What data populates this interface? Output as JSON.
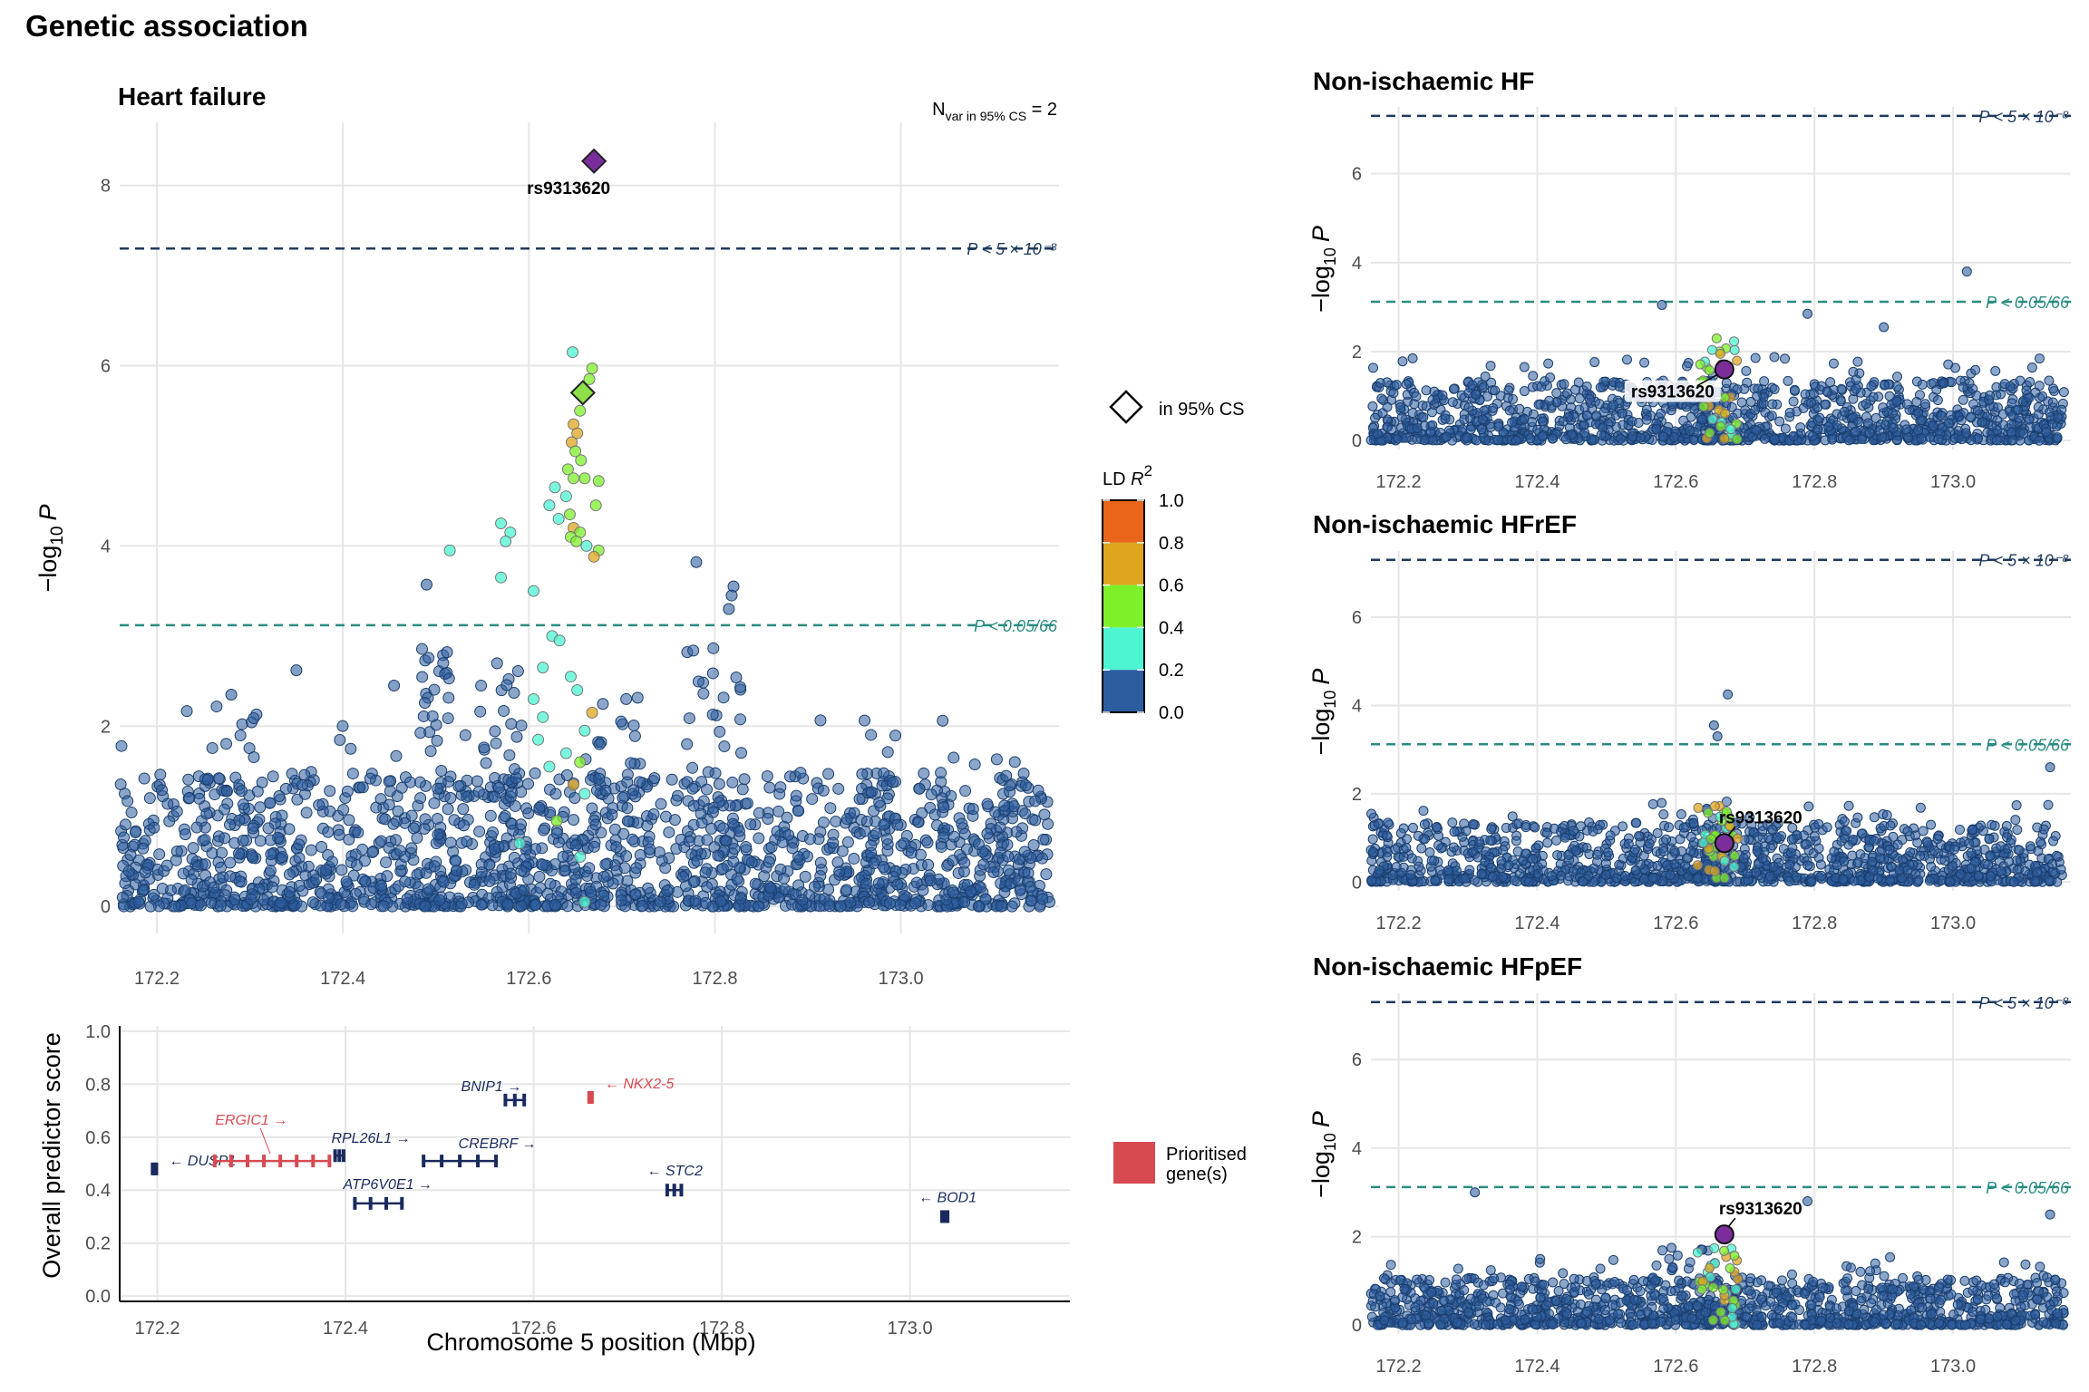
{
  "figure_title": "Genetic association",
  "colors": {
    "snp_base": "#2d5d9f",
    "snp_stroke": "#1b3f6e",
    "grid": "#e6e6e6",
    "gws_line": "#1f3a5f",
    "bonf_line": "#2a8c80",
    "lead": "#7b2e9b",
    "prioritised": "#d84a52",
    "gene": "#1a2a5e"
  },
  "chart_data": [
    {
      "type": "scatter",
      "panel": "main",
      "title": "Heart failure",
      "nvar_label": {
        "prefix": "N",
        "sub": "var in 95% CS",
        "suffix": " = 2"
      },
      "xlabel": "",
      "ylabel_parts": {
        "pre": "−log",
        "sub": "10",
        "post": "P"
      },
      "xlim": [
        172.16,
        173.17
      ],
      "ylim": [
        -0.3,
        8.7
      ],
      "x_ticks": [
        "172.2",
        "172.4",
        "172.6",
        "172.8",
        "173.0"
      ],
      "x_tick_values": [
        172.2,
        172.4,
        172.6,
        172.8,
        173.0
      ],
      "y_ticks": [
        "0",
        "2",
        "4",
        "6",
        "8"
      ],
      "y_tick_values": [
        0,
        2,
        4,
        6,
        8
      ],
      "thresholds": [
        {
          "y": 7.3,
          "label": "P < 5 × 10⁻⁸",
          "kind": "gws"
        },
        {
          "y": 3.12,
          "label": "P < 0.05/66",
          "kind": "bonf"
        }
      ],
      "lead_snp": {
        "name": "rs9313620",
        "x": 172.67,
        "y": 8.27,
        "shape": "diamond"
      },
      "credible_set": [
        {
          "x": 172.67,
          "y": 8.27,
          "color": "#7b2e9b"
        },
        {
          "x": 172.658,
          "y": 5.7,
          "color": "#8ee04a"
        }
      ],
      "highlight_points": [
        {
          "x": 172.647,
          "y": 6.15,
          "r2": 0.25
        },
        {
          "x": 172.668,
          "y": 5.97,
          "r2": 0.45
        },
        {
          "x": 172.665,
          "y": 5.85,
          "r2": 0.45
        },
        {
          "x": 172.655,
          "y": 5.5,
          "r2": 0.45
        },
        {
          "x": 172.648,
          "y": 5.35,
          "r2": 0.7
        },
        {
          "x": 172.652,
          "y": 5.25,
          "r2": 0.7
        },
        {
          "x": 172.646,
          "y": 5.15,
          "r2": 0.7
        },
        {
          "x": 172.65,
          "y": 5.05,
          "r2": 0.45
        },
        {
          "x": 172.656,
          "y": 4.95,
          "r2": 0.45
        },
        {
          "x": 172.642,
          "y": 4.85,
          "r2": 0.45
        },
        {
          "x": 172.66,
          "y": 4.75,
          "r2": 0.45
        },
        {
          "x": 172.648,
          "y": 4.75,
          "r2": 0.45
        },
        {
          "x": 172.675,
          "y": 4.72,
          "r2": 0.45
        },
        {
          "x": 172.628,
          "y": 4.65,
          "r2": 0.25
        },
        {
          "x": 172.64,
          "y": 4.55,
          "r2": 0.25
        },
        {
          "x": 172.672,
          "y": 4.45,
          "r2": 0.45
        },
        {
          "x": 172.622,
          "y": 4.45,
          "r2": 0.25
        },
        {
          "x": 172.644,
          "y": 4.35,
          "r2": 0.45
        },
        {
          "x": 172.632,
          "y": 4.3,
          "r2": 0.25
        },
        {
          "x": 172.648,
          "y": 4.2,
          "r2": 0.7
        },
        {
          "x": 172.655,
          "y": 4.15,
          "r2": 0.45
        },
        {
          "x": 172.645,
          "y": 4.1,
          "r2": 0.45
        },
        {
          "x": 172.651,
          "y": 4.05,
          "r2": 0.45
        },
        {
          "x": 172.662,
          "y": 4.0,
          "r2": 0.25
        },
        {
          "x": 172.675,
          "y": 3.95,
          "r2": 0.45
        },
        {
          "x": 172.67,
          "y": 3.88,
          "r2": 0.7
        },
        {
          "x": 172.57,
          "y": 4.25,
          "r2": 0.25
        },
        {
          "x": 172.58,
          "y": 4.15,
          "r2": 0.25
        },
        {
          "x": 172.575,
          "y": 4.05,
          "r2": 0.25
        },
        {
          "x": 172.515,
          "y": 3.95,
          "r2": 0.25
        },
        {
          "x": 172.57,
          "y": 3.65,
          "r2": 0.25
        },
        {
          "x": 172.605,
          "y": 3.5,
          "r2": 0.25
        },
        {
          "x": 172.625,
          "y": 3.0,
          "r2": 0.25
        },
        {
          "x": 172.633,
          "y": 2.95,
          "r2": 0.25
        },
        {
          "x": 172.615,
          "y": 2.65,
          "r2": 0.25
        },
        {
          "x": 172.645,
          "y": 2.55,
          "r2": 0.25
        },
        {
          "x": 172.652,
          "y": 2.4,
          "r2": 0.25
        },
        {
          "x": 172.605,
          "y": 2.3,
          "r2": 0.25
        },
        {
          "x": 172.615,
          "y": 2.1,
          "r2": 0.25
        },
        {
          "x": 172.668,
          "y": 2.15,
          "r2": 0.7
        },
        {
          "x": 172.66,
          "y": 1.95,
          "r2": 0.25
        },
        {
          "x": 172.61,
          "y": 1.85,
          "r2": 0.25
        },
        {
          "x": 172.64,
          "y": 1.7,
          "r2": 0.25
        },
        {
          "x": 172.655,
          "y": 1.6,
          "r2": 0.45
        },
        {
          "x": 172.622,
          "y": 1.55,
          "r2": 0.25
        },
        {
          "x": 172.648,
          "y": 1.35,
          "r2": 0.7
        },
        {
          "x": 172.66,
          "y": 1.25,
          "r2": 0.25
        },
        {
          "x": 172.63,
          "y": 0.95,
          "r2": 0.45
        },
        {
          "x": 172.59,
          "y": 0.7,
          "r2": 0.25
        },
        {
          "x": 172.655,
          "y": 0.55,
          "r2": 0.25
        },
        {
          "x": 172.66,
          "y": 0.05,
          "r2": 0.25
        }
      ],
      "background_points_note": "Several thousand background SNPs with LD R² < 0.2 form a dense band from −log10 P 0 to ~1.7 across the region; extra peaks near 172.50–172.52 (up to ~3.6), 172.78–172.83 (up to ~3.8)."
    },
    {
      "type": "scatter",
      "panel": "gene",
      "title": "",
      "xlabel": "Chromosome 5 position (Mbp)",
      "ylabel": "Overall predictor score",
      "xlim": [
        172.16,
        173.17
      ],
      "ylim": [
        -0.02,
        1.02
      ],
      "x_ticks": [
        "172.2",
        "172.4",
        "172.6",
        "172.8",
        "173.0"
      ],
      "x_tick_values": [
        172.2,
        172.4,
        172.6,
        172.8,
        173.0
      ],
      "y_ticks": [
        "0.0",
        "0.2",
        "0.4",
        "0.6",
        "0.8",
        "1.0"
      ],
      "y_tick_values": [
        0.0,
        0.2,
        0.4,
        0.6,
        0.8,
        1.0
      ],
      "genes": [
        {
          "name": "DUSP1",
          "label": "← DUSP1",
          "start": 172.195,
          "end": 172.199,
          "score": 0.48,
          "prioritised": false,
          "label_side": "right"
        },
        {
          "name": "ERGIC1",
          "label": "ERGIC1 →",
          "start": 172.261,
          "end": 172.383,
          "score": 0.51,
          "prioritised": true,
          "label_side": "above"
        },
        {
          "name": "RPL26L1",
          "label": "RPL26L1 →",
          "start": 172.389,
          "end": 172.398,
          "score": 0.53,
          "prioritised": false,
          "label_side": "right-above"
        },
        {
          "name": "ATP6V0E1",
          "label": "ATP6V0E1 →",
          "start": 172.41,
          "end": 172.46,
          "score": 0.35,
          "prioritised": false,
          "label_side": "above"
        },
        {
          "name": "CREBRF",
          "label": "CREBRF →",
          "start": 172.483,
          "end": 172.56,
          "score": 0.51,
          "prioritised": false,
          "label_side": "right-above"
        },
        {
          "name": "BNIP1",
          "label": "BNIP1 →",
          "start": 172.57,
          "end": 172.59,
          "score": 0.74,
          "prioritised": false,
          "label_side": "above"
        },
        {
          "name": "NKX2-5",
          "label": "← NKX2-5",
          "start": 172.659,
          "end": 172.662,
          "score": 0.75,
          "prioritised": true,
          "label_side": "right"
        },
        {
          "name": "STC2",
          "label": "← STC2",
          "start": 172.742,
          "end": 172.757,
          "score": 0.4,
          "prioritised": false,
          "label_side": "above"
        },
        {
          "name": "BOD1",
          "label": "← BOD1",
          "start": 173.034,
          "end": 173.04,
          "score": 0.3,
          "prioritised": false,
          "label_side": "above"
        }
      ],
      "legend": {
        "label_line1": "Prioritised",
        "label_line2": "gene(s)"
      }
    },
    {
      "type": "scatter",
      "panel": "small",
      "title": "Non-ischaemic HF",
      "xlim": [
        172.16,
        173.17
      ],
      "ylim": [
        -0.2,
        7.5
      ],
      "x_ticks": [
        "172.2",
        "172.4",
        "172.6",
        "172.8",
        "173.0"
      ],
      "x_tick_values": [
        172.2,
        172.4,
        172.6,
        172.8,
        173.0
      ],
      "y_ticks": [
        "0",
        "2",
        "4",
        "6"
      ],
      "y_tick_values": [
        0,
        2,
        4,
        6
      ],
      "thresholds": [
        {
          "y": 7.3,
          "label": "P < 5 × 10⁻⁸",
          "kind": "gws"
        },
        {
          "y": 3.12,
          "label": "P < 0.05/66",
          "kind": "bonf"
        }
      ],
      "lead_snp": {
        "name": "rs9313620",
        "x": 172.67,
        "y": 1.6,
        "label_style": "boxed-below-left"
      },
      "peak_points": [
        {
          "x": 173.02,
          "y": 3.8
        },
        {
          "x": 172.58,
          "y": 3.05
        },
        {
          "x": 172.79,
          "y": 2.85
        },
        {
          "x": 172.9,
          "y": 2.55
        }
      ]
    },
    {
      "type": "scatter",
      "panel": "small",
      "title": "Non-ischaemic HFrEF",
      "xlim": [
        172.16,
        173.17
      ],
      "ylim": [
        -0.2,
        7.5
      ],
      "x_ticks": [
        "172.2",
        "172.4",
        "172.6",
        "172.8",
        "173.0"
      ],
      "x_tick_values": [
        172.2,
        172.4,
        172.6,
        172.8,
        173.0
      ],
      "y_ticks": [
        "0",
        "2",
        "4",
        "6"
      ],
      "y_tick_values": [
        0,
        2,
        4,
        6
      ],
      "thresholds": [
        {
          "y": 7.3,
          "label": "P < 5 × 10⁻⁸",
          "kind": "gws"
        },
        {
          "y": 3.12,
          "label": "P < 0.05/66",
          "kind": "bonf"
        }
      ],
      "lead_snp": {
        "name": "rs9313620",
        "x": 172.67,
        "y": 0.88,
        "label_style": "above-right"
      },
      "peak_points": [
        {
          "x": 172.675,
          "y": 4.25
        },
        {
          "x": 172.655,
          "y": 3.55
        },
        {
          "x": 172.66,
          "y": 3.3
        },
        {
          "x": 173.14,
          "y": 2.6
        }
      ]
    },
    {
      "type": "scatter",
      "panel": "small",
      "title": "Non-ischaemic HFpEF",
      "xlim": [
        172.16,
        173.17
      ],
      "ylim": [
        -0.2,
        7.5
      ],
      "x_ticks": [
        "172.2",
        "172.4",
        "172.6",
        "172.8",
        "173.0"
      ],
      "x_tick_values": [
        172.2,
        172.4,
        172.6,
        172.8,
        173.0
      ],
      "y_ticks": [
        "0",
        "2",
        "4",
        "6"
      ],
      "y_tick_values": [
        0,
        2,
        4,
        6
      ],
      "thresholds": [
        {
          "y": 7.3,
          "label": "P < 5 × 10⁻⁸",
          "kind": "gws"
        },
        {
          "y": 3.12,
          "label": "P < 0.05/66",
          "kind": "bonf"
        }
      ],
      "lead_snp": {
        "name": "rs9313620",
        "x": 172.67,
        "y": 2.05,
        "label_style": "above-right"
      },
      "peak_points": [
        {
          "x": 172.31,
          "y": 3.0
        },
        {
          "x": 172.79,
          "y": 2.8
        },
        {
          "x": 173.14,
          "y": 2.5
        }
      ]
    }
  ],
  "legend": {
    "credible_set_label": "in 95% CS",
    "ld_title_pre": "LD ",
    "ld_title_r": "R",
    "ld_title_sup": "2",
    "ld_ticks": [
      "1.0",
      "0.8",
      "0.6",
      "0.4",
      "0.2",
      "0.0"
    ],
    "ld_colors_top_to_bottom": [
      "#e8651a",
      "#dfa51d",
      "#7ef02a",
      "#4ef5d3",
      "#2d5d9f"
    ]
  }
}
